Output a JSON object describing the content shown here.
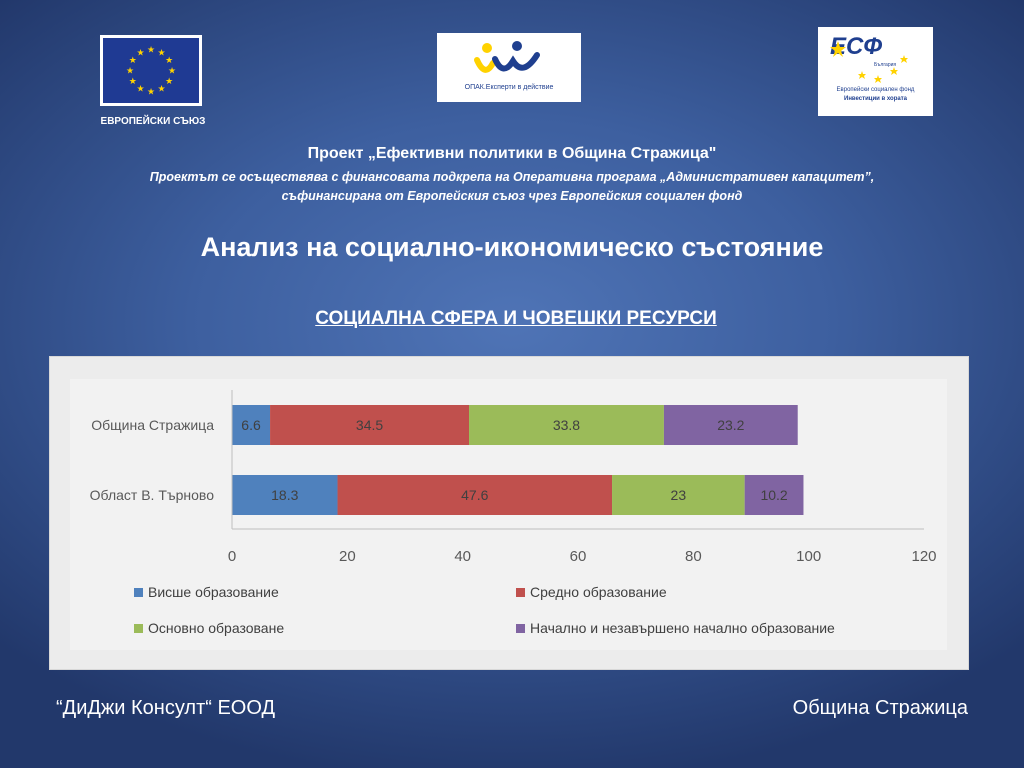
{
  "logos": {
    "eu": {
      "label": "ЕВРОПЕЙСКИ СЪЮЗ",
      "flag_color": "#1f3a93",
      "star_color": "#ffd200"
    },
    "opak": {
      "caption": "ОПАК.Експерти в действие",
      "colors": [
        "#ffd200",
        "#1f3f8f"
      ]
    },
    "esf": {
      "mark": "ЕСФ",
      "country": "България",
      "line1": "Европейски социален фонд",
      "line2": "Инвестиции в хората"
    }
  },
  "header": {
    "project_title": "Проект „Ефективни политики в Община Стражица\"",
    "project_line1": "Проектът се осъществява с финансовата подкрепа на Оперативна програма „Административен капацитет”,",
    "project_line2": "съфинансирана от Европейския съюз чрез Европейския социален фонд"
  },
  "main_title": "Анализ на социално-икономическо състояние",
  "section_title": "СОЦИАЛНА СФЕРА И ЧОВЕШКИ РЕСУРСИ",
  "chart_data": {
    "type": "bar",
    "orientation": "horizontal",
    "stacked": true,
    "categories": [
      "Община Стражица",
      "Област В. Търново"
    ],
    "series": [
      {
        "name": "Висше образование",
        "values": [
          6.6,
          18.3
        ],
        "color": "#4f81bd"
      },
      {
        "name": "Средно образование",
        "values": [
          34.5,
          47.6
        ],
        "color": "#c0504d"
      },
      {
        "name": "Основно образоване",
        "values": [
          33.8,
          23
        ],
        "color": "#9bbb59"
      },
      {
        "name": "Начално и незавършено начално образование",
        "values": [
          23.2,
          10.2
        ],
        "color": "#8064a2"
      }
    ],
    "data_labels": [
      [
        "6.6",
        "34.5",
        "33.8",
        "23.2"
      ],
      [
        "18.3",
        "47.6",
        "23",
        "10.2"
      ]
    ],
    "xlim": [
      0,
      120
    ],
    "xticks": [
      "0",
      "20",
      "40",
      "60",
      "80",
      "100",
      "120"
    ],
    "grid": false,
    "legend_position": "bottom"
  },
  "footer": {
    "left": "“ДиДжи Консулт“ ЕООД",
    "right": "Община Стражица"
  }
}
